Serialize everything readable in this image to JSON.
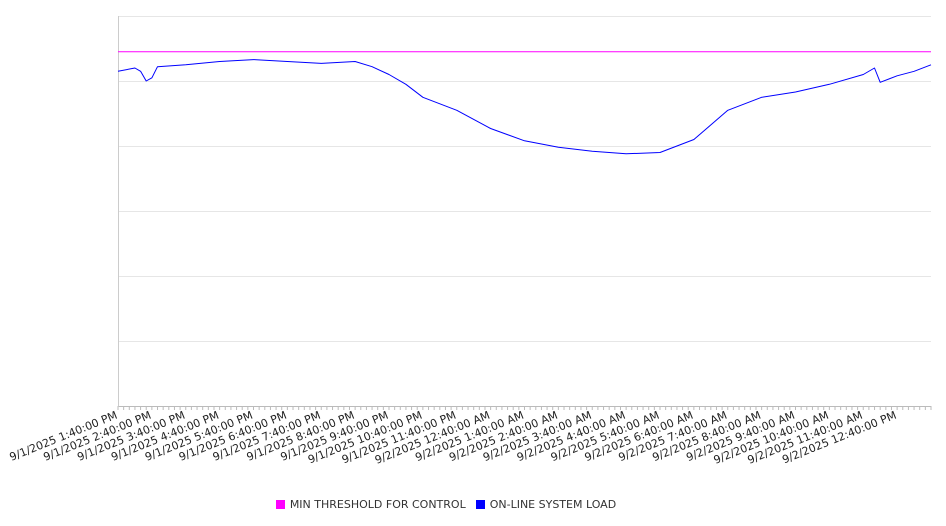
{
  "chart_data": {
    "type": "line",
    "title": "",
    "xlabel": "",
    "ylabel": "",
    "ylim": [
      0,
      6
    ],
    "y_tick_labels_visible": false,
    "grid": "horizontal",
    "legend_position": "bottom",
    "x_tick_labels": [
      "9/1/2025 1:40:00 PM",
      "9/1/2025 2:40:00 PM",
      "9/1/2025 3:40:00 PM",
      "9/1/2025 4:40:00 PM",
      "9/1/2025 5:40:00 PM",
      "9/1/2025 6:40:00 PM",
      "9/1/2025 7:40:00 PM",
      "9/1/2025 8:40:00 PM",
      "9/1/2025 9:40:00 PM",
      "9/1/2025 10:40:00 PM",
      "9/1/2025 11:40:00 PM",
      "9/2/2025 12:40:00 AM",
      "9/2/2025 1:40:00 AM",
      "9/2/2025 2:40:00 AM",
      "9/2/2025 3:40:00 AM",
      "9/2/2025 4:40:00 AM",
      "9/2/2025 5:40:00 AM",
      "9/2/2025 6:40:00 AM",
      "9/2/2025 7:40:00 AM",
      "9/2/2025 8:40:00 AM",
      "9/2/2025 9:40:00 AM",
      "9/2/2025 10:40:00 AM",
      "9/2/2025 11:40:00 AM",
      "9/2/2025 12:40:00 PM"
    ],
    "x_end": "9/2/2025 1:40:00 PM",
    "series": [
      {
        "name": "MIN THRESHOLD FOR CONTROL",
        "color": "#ff00ff",
        "values": [
          [
            "9/1/2025 1:40:00 PM",
            5.45
          ],
          [
            "9/2/2025 1:40:00 PM",
            5.45
          ]
        ]
      },
      {
        "name": "ON-LINE SYSTEM LOAD",
        "color": "#0000ff",
        "values": [
          [
            "9/1/2025 1:40:00 PM",
            5.15
          ],
          [
            "9/1/2025 2:10:00 PM",
            5.2
          ],
          [
            "9/1/2025 2:20:00 PM",
            5.15
          ],
          [
            "9/1/2025 2:30:00 PM",
            5.0
          ],
          [
            "9/1/2025 2:40:00 PM",
            5.05
          ],
          [
            "9/1/2025 2:50:00 PM",
            5.22
          ],
          [
            "9/1/2025 3:40:00 PM",
            5.25
          ],
          [
            "9/1/2025 4:40:00 PM",
            5.3
          ],
          [
            "9/1/2025 5:40:00 PM",
            5.33
          ],
          [
            "9/1/2025 6:40:00 PM",
            5.3
          ],
          [
            "9/1/2025 7:40:00 PM",
            5.27
          ],
          [
            "9/1/2025 8:40:00 PM",
            5.3
          ],
          [
            "9/1/2025 9:10:00 PM",
            5.22
          ],
          [
            "9/1/2025 9:40:00 PM",
            5.1
          ],
          [
            "9/1/2025 10:10:00 PM",
            4.95
          ],
          [
            "9/1/2025 10:40:00 PM",
            4.75
          ],
          [
            "9/1/2025 11:40:00 PM",
            4.55
          ],
          [
            "9/2/2025 12:40:00 AM",
            4.27
          ],
          [
            "9/2/2025 1:40:00 AM",
            4.08
          ],
          [
            "9/2/2025 2:40:00 AM",
            3.98
          ],
          [
            "9/2/2025 3:40:00 AM",
            3.92
          ],
          [
            "9/2/2025 4:40:00 AM",
            3.88
          ],
          [
            "9/2/2025 5:40:00 AM",
            3.9
          ],
          [
            "9/2/2025 6:40:00 AM",
            4.1
          ],
          [
            "9/2/2025 7:40:00 AM",
            4.55
          ],
          [
            "9/2/2025 8:40:00 AM",
            4.75
          ],
          [
            "9/2/2025 9:40:00 AM",
            4.83
          ],
          [
            "9/2/2025 10:40:00 AM",
            4.95
          ],
          [
            "9/2/2025 11:40:00 AM",
            5.1
          ],
          [
            "9/2/2025 12:00:00 PM",
            5.2
          ],
          [
            "9/2/2025 12:10:00 PM",
            4.98
          ],
          [
            "9/2/2025 12:40:00 PM",
            5.08
          ],
          [
            "9/2/2025 1:10:00 PM",
            5.15
          ],
          [
            "9/2/2025 1:40:00 PM",
            5.25
          ]
        ]
      }
    ]
  }
}
